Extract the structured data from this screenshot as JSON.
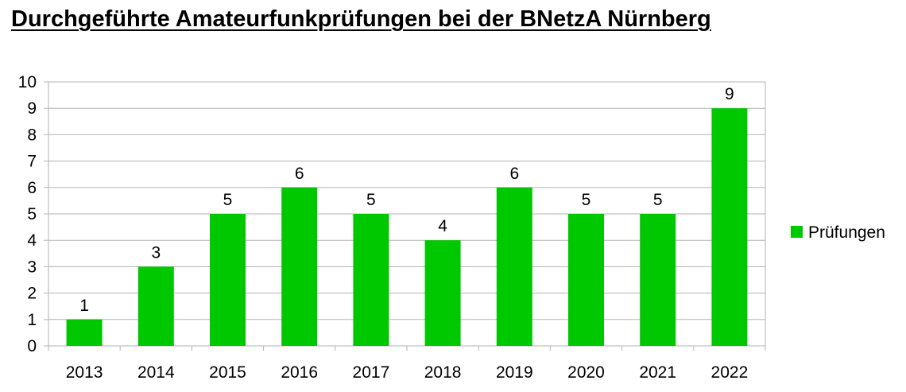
{
  "chart_data": {
    "type": "bar",
    "title": "Durchgeführte Amateurfunkprüfungen bei der BNetzA Nürnberg",
    "categories": [
      "2013",
      "2014",
      "2015",
      "2016",
      "2017",
      "2018",
      "2019",
      "2020",
      "2021",
      "2022"
    ],
    "series": [
      {
        "name": "Prüfungen",
        "values": [
          1,
          3,
          5,
          6,
          5,
          4,
          6,
          5,
          5,
          9
        ],
        "color": "#00c800"
      }
    ],
    "ylim": [
      0,
      10
    ],
    "yticks": [
      0,
      1,
      2,
      3,
      4,
      5,
      6,
      7,
      8,
      9,
      10
    ],
    "grid": true,
    "data_labels": true,
    "legend_position": "right"
  }
}
